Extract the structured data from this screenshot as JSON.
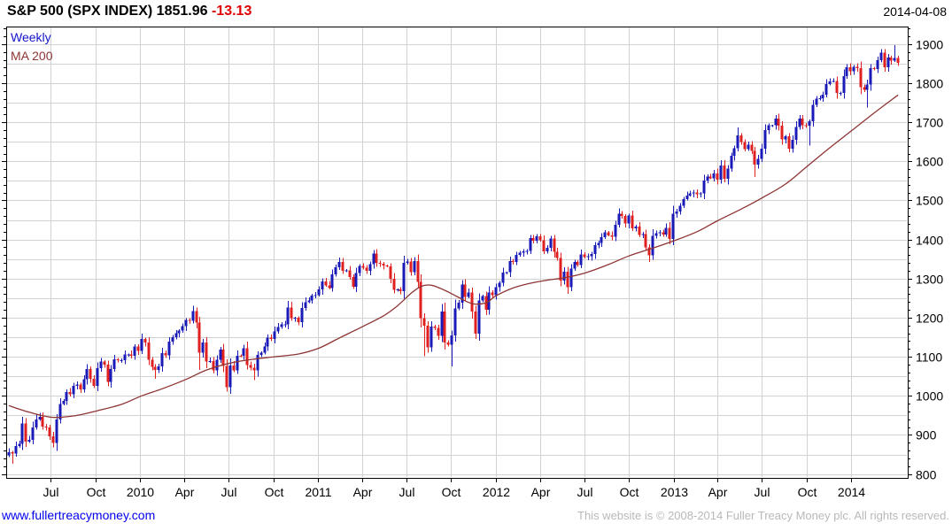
{
  "header": {
    "instrument": "S&P 500 (SPX INDEX)",
    "last_price": "1851.96",
    "change": "-13.13",
    "date": "2014-04-08"
  },
  "legend": {
    "period": "Weekly",
    "ma": "MA 200"
  },
  "footer": {
    "site": "www.fullertreacymoney.com",
    "copyright": "This website is © 2008-2014 Fuller Treacy Money plc. All rights reserved."
  },
  "colors": {
    "up": "#1a1ab8",
    "down": "#e01f1f",
    "ma": "#8e3434",
    "grid": "#d2d2d2",
    "axis": "#000000",
    "legend_weekly": "#1414cc",
    "change_negative": "#e00000",
    "link": "#0000ee",
    "copyright_gray": "#b8b8b8",
    "background": "#ffffff"
  },
  "chart_data": {
    "type": "candlestick",
    "title": "S&P 500 (SPX INDEX)",
    "period": "Weekly",
    "overlay": "MA 200",
    "start_week": "2009-04-06",
    "interval": "1 week",
    "last_price": 1851.96,
    "change": -13.13,
    "first_open": 848,
    "closes": [
      856,
      852,
      871,
      877,
      929,
      883,
      887,
      919,
      940,
      946,
      921,
      919,
      896,
      879,
      940,
      979,
      987,
      1010,
      1004,
      1026,
      1029,
      1016,
      1043,
      1068,
      1044,
      1025,
      1071,
      1088,
      1080,
      1036,
      1069,
      1094,
      1091,
      1091,
      1106,
      1106,
      1102,
      1126,
      1115,
      1145,
      1136,
      1092,
      1074,
      1066,
      1075,
      1109,
      1104,
      1139,
      1150,
      1160,
      1167,
      1178,
      1194,
      1192,
      1217,
      1187,
      1111,
      1136,
      1088,
      1089,
      1065,
      1092,
      1118,
      1077,
      1022,
      1078,
      1065,
      1103,
      1102,
      1122,
      1079,
      1072,
      1065,
      1105,
      1110,
      1126,
      1149,
      1146,
      1165,
      1176,
      1183,
      1183,
      1226,
      1199,
      1200,
      1189,
      1225,
      1240,
      1244,
      1257,
      1258,
      1272,
      1293,
      1283,
      1276,
      1311,
      1329,
      1343,
      1320,
      1321,
      1304,
      1279,
      1314,
      1332,
      1328,
      1320,
      1337,
      1364,
      1340,
      1338,
      1333,
      1331,
      1300,
      1271,
      1272,
      1268,
      1340,
      1344,
      1316,
      1345,
      1292,
      1199,
      1179,
      1124,
      1177,
      1174,
      1154,
      1216,
      1136,
      1131,
      1155,
      1224,
      1238,
      1285,
      1253,
      1264,
      1216,
      1159,
      1244,
      1255,
      1220,
      1265,
      1258,
      1278,
      1289,
      1315,
      1316,
      1345,
      1343,
      1361,
      1366,
      1370,
      1371,
      1404,
      1397,
      1408,
      1398,
      1370,
      1379,
      1403,
      1369,
      1353,
      1295,
      1318,
      1278,
      1326,
      1343,
      1335,
      1362,
      1355,
      1357,
      1363,
      1386,
      1391,
      1406,
      1418,
      1411,
      1407,
      1438,
      1466,
      1460,
      1441,
      1461,
      1429,
      1433,
      1412,
      1414,
      1380,
      1360,
      1409,
      1416,
      1418,
      1413,
      1430,
      1402,
      1466,
      1472,
      1486,
      1503,
      1513,
      1518,
      1520,
      1516,
      1518,
      1551,
      1561,
      1557,
      1569,
      1553,
      1589,
      1555,
      1582,
      1614,
      1634,
      1667,
      1650,
      1631,
      1643,
      1627,
      1592,
      1606,
      1632,
      1680,
      1692,
      1692,
      1710,
      1691,
      1656,
      1664,
      1633,
      1655,
      1688,
      1710,
      1692,
      1691,
      1703,
      1745,
      1760,
      1762,
      1771,
      1798,
      1805,
      1806,
      1775,
      1775,
      1818,
      1841,
      1831,
      1842,
      1839,
      1790,
      1783,
      1797,
      1839,
      1836,
      1859,
      1878,
      1841,
      1866,
      1858,
      1865,
      1852
    ],
    "wick_overrides": {
      "1": {
        "low": 826
      },
      "43": {
        "low": 1044
      },
      "56": {
        "low": 1066
      },
      "64": {
        "low": 1011
      },
      "72": {
        "low": 1040
      },
      "122": {
        "low": 1101
      },
      "130": {
        "low": 1075
      },
      "188": {
        "low": 1343
      },
      "214": {
        "high": 1687
      },
      "219": {
        "low": 1560
      },
      "235": {
        "low": 1640
      },
      "252": {
        "low": 1738
      },
      "260": {
        "high": 1897
      },
      "261": {
        "high": 1870
      }
    },
    "ma200_anchors": [
      [
        0,
        975
      ],
      [
        6,
        958
      ],
      [
        13,
        945
      ],
      [
        20,
        950
      ],
      [
        26,
        962
      ],
      [
        33,
        978
      ],
      [
        39,
        1000
      ],
      [
        45,
        1018
      ],
      [
        52,
        1042
      ],
      [
        58,
        1066
      ],
      [
        65,
        1084
      ],
      [
        72,
        1094
      ],
      [
        78,
        1100
      ],
      [
        85,
        1107
      ],
      [
        91,
        1122
      ],
      [
        97,
        1148
      ],
      [
        104,
        1178
      ],
      [
        110,
        1205
      ],
      [
        114,
        1230
      ],
      [
        118,
        1262
      ],
      [
        121,
        1280
      ],
      [
        124,
        1283
      ],
      [
        128,
        1270
      ],
      [
        132,
        1252
      ],
      [
        136,
        1236
      ],
      [
        140,
        1238
      ],
      [
        143,
        1256
      ],
      [
        148,
        1276
      ],
      [
        153,
        1288
      ],
      [
        158,
        1296
      ],
      [
        163,
        1302
      ],
      [
        169,
        1314
      ],
      [
        176,
        1336
      ],
      [
        182,
        1358
      ],
      [
        189,
        1378
      ],
      [
        195,
        1396
      ],
      [
        202,
        1420
      ],
      [
        208,
        1448
      ],
      [
        215,
        1478
      ],
      [
        221,
        1506
      ],
      [
        228,
        1542
      ],
      [
        234,
        1585
      ],
      [
        241,
        1635
      ],
      [
        247,
        1676
      ],
      [
        254,
        1724
      ],
      [
        261,
        1770
      ]
    ],
    "y_axis": {
      "side": "right",
      "min": 790,
      "max": 1945,
      "tick_step": 100,
      "grid_step": 50,
      "minor_tick_step": 20,
      "ticks": [
        800,
        900,
        1000,
        1100,
        1200,
        1300,
        1400,
        1500,
        1600,
        1700,
        1800,
        1900
      ]
    },
    "x_ticks": [
      {
        "label": "Jul",
        "week": 12.3
      },
      {
        "label": "Oct",
        "week": 25.4
      },
      {
        "label": "2010",
        "week": 38.6
      },
      {
        "label": "Apr",
        "week": 51.4
      },
      {
        "label": "Jul",
        "week": 64.4
      },
      {
        "label": "Oct",
        "week": 77.6
      },
      {
        "label": "2011",
        "week": 90.7
      },
      {
        "label": "Apr",
        "week": 103.6
      },
      {
        "label": "Jul",
        "week": 116.6
      },
      {
        "label": "Oct",
        "week": 129.7
      },
      {
        "label": "2012",
        "week": 142.9
      },
      {
        "label": "Apr",
        "week": 155.9
      },
      {
        "label": "Jul",
        "week": 168.9
      },
      {
        "label": "Oct",
        "week": 182.0
      },
      {
        "label": "2013",
        "week": 195.1
      },
      {
        "label": "Apr",
        "week": 208.0
      },
      {
        "label": "Jul",
        "week": 221.0
      },
      {
        "label": "Oct",
        "week": 234.1
      },
      {
        "label": "2014",
        "week": 247.3
      }
    ]
  }
}
